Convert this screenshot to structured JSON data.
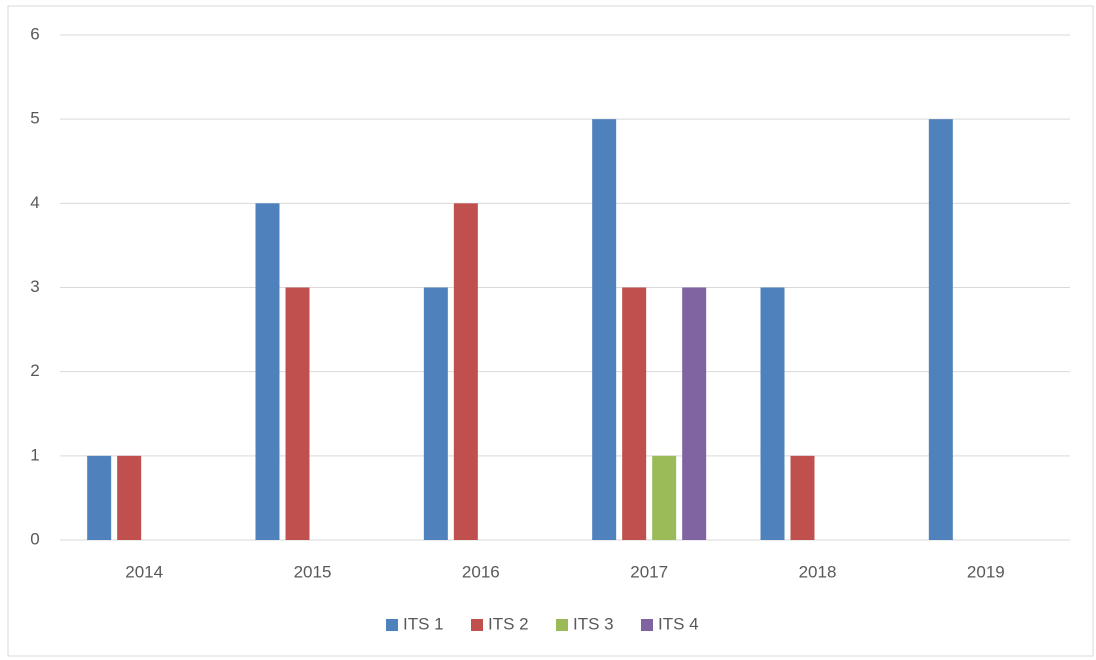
{
  "chart_data": {
    "type": "bar",
    "categories": [
      "2014",
      "2015",
      "2016",
      "2017",
      "2018",
      "2019"
    ],
    "series": [
      {
        "name": "ITS 1",
        "color": "#4f81bd",
        "values": [
          1,
          4,
          3,
          5,
          3,
          5
        ]
      },
      {
        "name": "ITS 2",
        "color": "#c0504d",
        "values": [
          1,
          3,
          4,
          3,
          1,
          0
        ]
      },
      {
        "name": "ITS 3",
        "color": "#9bbb59",
        "values": [
          0,
          0,
          0,
          1,
          0,
          0
        ]
      },
      {
        "name": "ITS 4",
        "color": "#8064a2",
        "values": [
          0,
          0,
          0,
          3,
          0,
          0
        ]
      }
    ],
    "ylim": [
      0,
      6
    ],
    "yticks": [
      0,
      1,
      2,
      3,
      4,
      5,
      6
    ],
    "grid": true,
    "legend": "bottom"
  }
}
